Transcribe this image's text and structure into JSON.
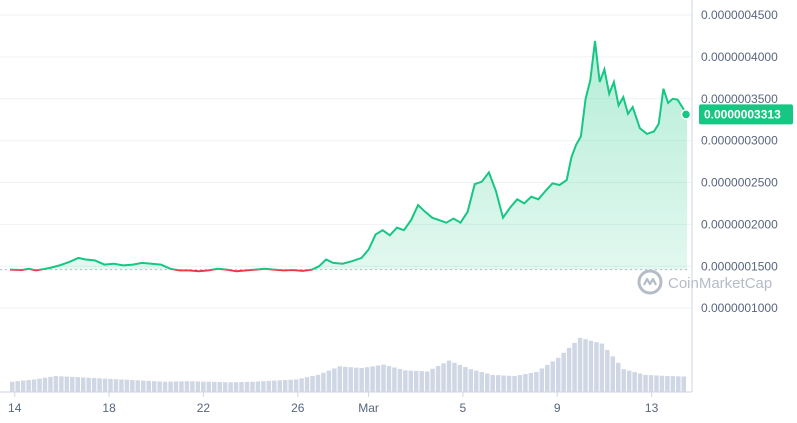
{
  "watermark": {
    "brand": "CoinMarketCap",
    "icon": "coinmarketcap-logo-icon"
  },
  "colors": {
    "up": "#16c784",
    "down": "#ea3943",
    "volume": "#cfd6e4",
    "grid": "#eff2f5",
    "axis": "#cfd6e4",
    "text": "#58667e"
  },
  "chart_data": {
    "type": "line",
    "title": "",
    "xlabel": "",
    "ylabel": "",
    "x_ticks": [
      {
        "label": "14",
        "x": 0
      },
      {
        "label": "18",
        "x": 4
      },
      {
        "label": "22",
        "x": 8
      },
      {
        "label": "26",
        "x": 12
      },
      {
        "label": "Mar",
        "x": 15
      },
      {
        "label": "5",
        "x": 19
      },
      {
        "label": "9",
        "x": 23
      },
      {
        "label": "13",
        "x": 27
      }
    ],
    "y_ticks": [
      "0.0000001000",
      "0.0000001500",
      "0.0000002000",
      "0.0000002500",
      "0.0000003000",
      "0.0000003500",
      "0.0000004000",
      "0.0000004500"
    ],
    "ylim": [
      5e-08,
      4.5e-07
    ],
    "xlim": [
      -0.2,
      28.5
    ],
    "grid": true,
    "reference_price": 1.46e-07,
    "current_price": {
      "label": "0.0000003313",
      "value": 3.313e-07
    },
    "series": [
      {
        "values": [
          [
            -0.2,
            1.46e-07
          ],
          [
            0.3,
            1.455e-07
          ],
          [
            0.6,
            1.47e-07
          ],
          [
            0.9,
            1.45e-07
          ],
          [
            1.2,
            1.465e-07
          ],
          [
            1.5,
            1.48e-07
          ],
          [
            1.9,
            1.51e-07
          ],
          [
            2.3,
            1.55e-07
          ],
          [
            2.7,
            1.6e-07
          ],
          [
            3.0,
            1.58e-07
          ],
          [
            3.4,
            1.57e-07
          ],
          [
            3.8,
            1.52e-07
          ],
          [
            4.2,
            1.53e-07
          ],
          [
            4.6,
            1.51e-07
          ],
          [
            5.0,
            1.52e-07
          ],
          [
            5.4,
            1.54e-07
          ],
          [
            5.8,
            1.53e-07
          ],
          [
            6.2,
            1.52e-07
          ],
          [
            6.6,
            1.47e-07
          ],
          [
            7.0,
            1.45e-07
          ],
          [
            7.4,
            1.45e-07
          ],
          [
            7.8,
            1.44e-07
          ],
          [
            8.2,
            1.45e-07
          ],
          [
            8.6,
            1.47e-07
          ],
          [
            9.0,
            1.46e-07
          ],
          [
            9.4,
            1.44e-07
          ],
          [
            9.8,
            1.45e-07
          ],
          [
            10.2,
            1.46e-07
          ],
          [
            10.6,
            1.47e-07
          ],
          [
            11.0,
            1.46e-07
          ],
          [
            11.4,
            1.45e-07
          ],
          [
            11.8,
            1.455e-07
          ],
          [
            12.2,
            1.445e-07
          ],
          [
            12.6,
            1.46e-07
          ],
          [
            12.9,
            1.5e-07
          ],
          [
            13.2,
            1.58e-07
          ],
          [
            13.5,
            1.54e-07
          ],
          [
            13.9,
            1.53e-07
          ],
          [
            14.3,
            1.56e-07
          ],
          [
            14.7,
            1.6e-07
          ],
          [
            15.0,
            1.7e-07
          ],
          [
            15.3,
            1.88e-07
          ],
          [
            15.6,
            1.93e-07
          ],
          [
            15.9,
            1.87e-07
          ],
          [
            16.2,
            1.96e-07
          ],
          [
            16.5,
            1.93e-07
          ],
          [
            16.8,
            2.05e-07
          ],
          [
            17.1,
            2.23e-07
          ],
          [
            17.4,
            2.15e-07
          ],
          [
            17.7,
            2.08e-07
          ],
          [
            18.0,
            2.05e-07
          ],
          [
            18.3,
            2.02e-07
          ],
          [
            18.6,
            2.07e-07
          ],
          [
            18.9,
            2.02e-07
          ],
          [
            19.2,
            2.15e-07
          ],
          [
            19.5,
            2.48e-07
          ],
          [
            19.8,
            2.51e-07
          ],
          [
            20.1,
            2.62e-07
          ],
          [
            20.4,
            2.4e-07
          ],
          [
            20.7,
            2.08e-07
          ],
          [
            21.0,
            2.2e-07
          ],
          [
            21.3,
            2.3e-07
          ],
          [
            21.6,
            2.25e-07
          ],
          [
            21.9,
            2.33e-07
          ],
          [
            22.2,
            2.3e-07
          ],
          [
            22.5,
            2.4e-07
          ],
          [
            22.8,
            2.49e-07
          ],
          [
            23.1,
            2.47e-07
          ],
          [
            23.4,
            2.53e-07
          ],
          [
            23.6,
            2.8e-07
          ],
          [
            23.8,
            2.95e-07
          ],
          [
            24.0,
            3.05e-07
          ],
          [
            24.2,
            3.5e-07
          ],
          [
            24.4,
            3.72e-07
          ],
          [
            24.6,
            4.19e-07
          ],
          [
            24.8,
            3.7e-07
          ],
          [
            25.0,
            3.85e-07
          ],
          [
            25.2,
            3.56e-07
          ],
          [
            25.4,
            3.7e-07
          ],
          [
            25.6,
            3.42e-07
          ],
          [
            25.8,
            3.52e-07
          ],
          [
            26.0,
            3.32e-07
          ],
          [
            26.2,
            3.4e-07
          ],
          [
            26.5,
            3.15e-07
          ],
          [
            26.8,
            3.08e-07
          ],
          [
            27.1,
            3.11e-07
          ],
          [
            27.3,
            3.2e-07
          ],
          [
            27.5,
            3.62e-07
          ],
          [
            27.7,
            3.45e-07
          ],
          [
            27.9,
            3.5e-07
          ],
          [
            28.1,
            3.49e-07
          ],
          [
            28.3,
            3.4e-07
          ],
          [
            28.5,
            3.313e-07
          ]
        ]
      }
    ],
    "volume": [
      [
        0,
        0.18
      ],
      [
        1,
        0.22
      ],
      [
        2,
        0.28
      ],
      [
        3,
        0.26
      ],
      [
        4,
        0.24
      ],
      [
        5,
        0.22
      ],
      [
        6,
        0.2
      ],
      [
        7,
        0.18
      ],
      [
        8,
        0.19
      ],
      [
        9,
        0.18
      ],
      [
        10,
        0.17
      ],
      [
        11,
        0.18
      ],
      [
        12,
        0.2
      ],
      [
        13,
        0.22
      ],
      [
        14,
        0.3
      ],
      [
        15,
        0.45
      ],
      [
        16,
        0.42
      ],
      [
        17,
        0.48
      ],
      [
        18,
        0.38
      ],
      [
        19,
        0.36
      ],
      [
        20,
        0.55
      ],
      [
        21,
        0.4
      ],
      [
        22,
        0.3
      ],
      [
        23,
        0.28
      ],
      [
        24,
        0.35
      ],
      [
        25,
        0.6
      ],
      [
        26,
        0.95
      ],
      [
        27,
        0.85
      ],
      [
        28,
        0.4
      ],
      [
        29,
        0.3
      ],
      [
        30,
        0.28
      ],
      [
        31,
        0.27
      ]
    ]
  }
}
